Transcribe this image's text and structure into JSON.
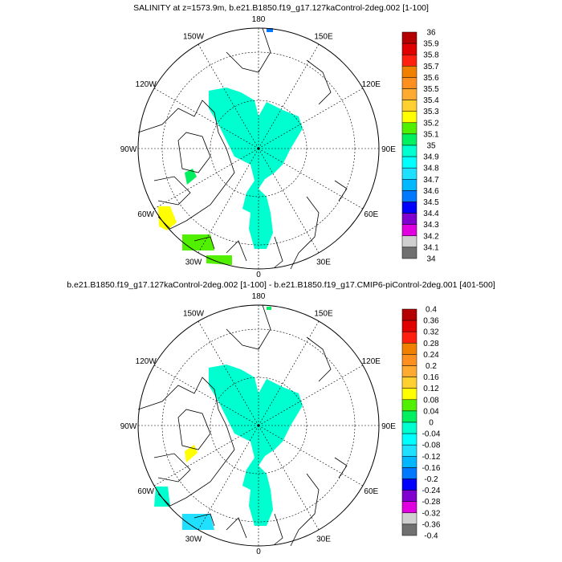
{
  "panels": [
    {
      "title": "SALINITY at z=1573.9m, b.e21.B1850.f19_g17.127kaControl-2deg.002 [1-100]",
      "lon_labels": [
        "180",
        "150W",
        "150E",
        "120W",
        "120E",
        "90W",
        "90E",
        "60W",
        "60E",
        "30W",
        "30E",
        "0"
      ],
      "colorbar": {
        "labels": [
          "36",
          "35.9",
          "35.8",
          "35.7",
          "35.6",
          "35.5",
          "35.4",
          "35.3",
          "35.2",
          "35.1",
          "35",
          "34.9",
          "34.8",
          "34.7",
          "34.6",
          "34.5",
          "34.4",
          "34.3",
          "34.2",
          "34.1",
          "34"
        ]
      }
    },
    {
      "title": "b.e21.B1850.f19_g17.127kaControl-2deg.002 [1-100] - b.e21.B1850.f19_g17.CMIP6-piControl-2deg.001 [401-500]",
      "lon_labels": [
        "180",
        "150W",
        "150E",
        "120W",
        "120E",
        "90W",
        "90E",
        "60W",
        "60E",
        "30W",
        "30E",
        "0"
      ],
      "colorbar": {
        "labels": [
          "0.4",
          "0.36",
          "0.32",
          "0.28",
          "0.24",
          "0.2",
          "0.16",
          "0.12",
          "0.08",
          "0.04",
          "0",
          "-0.04",
          "-0.08",
          "-0.12",
          "-0.16",
          "-0.2",
          "-0.24",
          "-0.28",
          "-0.32",
          "-0.36",
          "-0.4"
        ]
      }
    }
  ],
  "colors": [
    "#b40000",
    "#e00000",
    "#ff2010",
    "#f08000",
    "#ff9020",
    "#ffaa30",
    "#ffd030",
    "#ffff00",
    "#50f000",
    "#00f060",
    "#00ffd0",
    "#00ffff",
    "#20e0ff",
    "#00b8ff",
    "#0078ff",
    "#0000ff",
    "#8000d0",
    "#e000e0",
    "#d0d0d0",
    "#707070"
  ]
}
